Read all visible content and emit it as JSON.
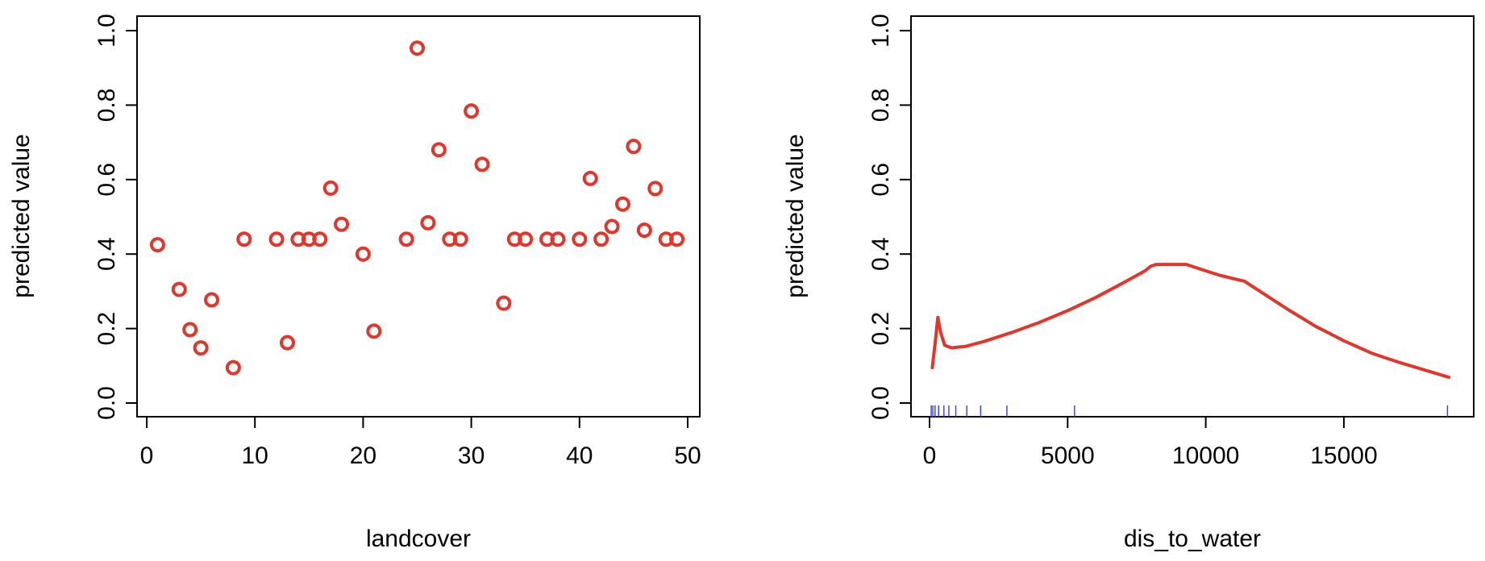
{
  "colors": {
    "series": "#e0362b",
    "rug": "#4444ee",
    "axis": "#000000",
    "background": "#ffffff"
  },
  "chart_data": [
    {
      "type": "scatter",
      "xlabel": "landcover",
      "ylabel": "predicted value",
      "xlim": [
        0,
        50
      ],
      "ylim": [
        0,
        1
      ],
      "xticks": [
        "0",
        "10",
        "20",
        "30",
        "40",
        "50"
      ],
      "yticks": [
        "0.0",
        "0.2",
        "0.4",
        "0.6",
        "0.8",
        "1.0"
      ],
      "marker": "open-circle",
      "x": [
        1,
        3,
        4,
        5,
        6,
        8,
        9,
        12,
        13,
        14,
        15,
        16,
        17,
        18,
        20,
        21,
        24,
        25,
        26,
        27,
        28,
        29,
        30,
        31,
        33,
        34,
        35,
        37,
        38,
        40,
        41,
        42,
        43,
        44,
        45,
        46,
        47,
        48,
        49
      ],
      "y": [
        0.425,
        0.305,
        0.197,
        0.148,
        0.277,
        0.095,
        0.44,
        0.44,
        0.162,
        0.44,
        0.44,
        0.44,
        0.577,
        0.48,
        0.4,
        0.193,
        0.44,
        0.953,
        0.484,
        0.68,
        0.44,
        0.44,
        0.784,
        0.641,
        0.268,
        0.44,
        0.44,
        0.44,
        0.44,
        0.44,
        0.603,
        0.44,
        0.474,
        0.534,
        0.689,
        0.464,
        0.576,
        0.44,
        0.44
      ]
    },
    {
      "type": "line",
      "xlabel": "dis_to_water",
      "ylabel": "predicted value",
      "xlim": [
        0,
        19000
      ],
      "ylim": [
        0,
        1
      ],
      "xticks": [
        "0",
        "5000",
        "10000",
        "15000"
      ],
      "yticks": [
        "0.0",
        "0.2",
        "0.4",
        "0.6",
        "0.8",
        "1.0"
      ],
      "x": [
        100,
        200,
        300,
        400,
        550,
        800,
        1000,
        1300,
        2000,
        3000,
        4000,
        5000,
        6000,
        7000,
        7800,
        8000,
        8200,
        9300,
        10000,
        10500,
        11000,
        11400,
        12000,
        13000,
        14000,
        15000,
        16000,
        17000,
        18000,
        18800
      ],
      "y": [
        0.095,
        0.16,
        0.23,
        0.19,
        0.155,
        0.148,
        0.15,
        0.152,
        0.166,
        0.19,
        0.217,
        0.248,
        0.283,
        0.322,
        0.355,
        0.367,
        0.372,
        0.372,
        0.355,
        0.343,
        0.334,
        0.327,
        0.298,
        0.25,
        0.205,
        0.167,
        0.134,
        0.109,
        0.087,
        0.069
      ],
      "rug": [
        60,
        120,
        200,
        330,
        520,
        700,
        950,
        1350,
        1850,
        2800,
        5250,
        18750
      ]
    }
  ]
}
